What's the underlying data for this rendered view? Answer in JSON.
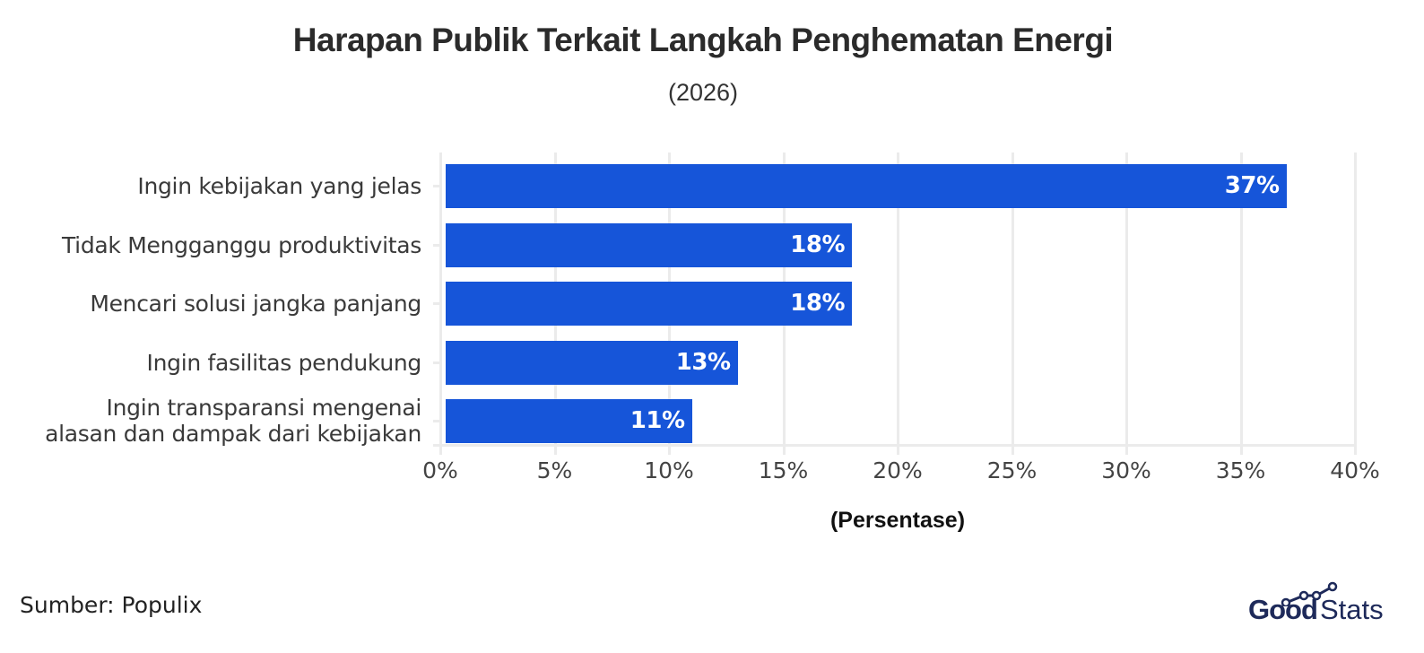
{
  "header": {
    "title": "Harapan Publik Terkait Langkah Penghematan Energi",
    "subtitle": "(2026)"
  },
  "footer": {
    "source": "Sumber: Populix",
    "logo_good": "Good",
    "logo_stats": "Stats"
  },
  "colors": {
    "bar": "#1655d9",
    "grid": "#ebebeb",
    "logo": "#1e2a5a"
  },
  "axis": {
    "x_ticks": [
      "0%",
      "5%",
      "10%",
      "15%",
      "20%",
      "25%",
      "30%",
      "35%",
      "40%"
    ],
    "x_label": "(Persentase)"
  },
  "bars": [
    {
      "label_lines": [
        "Ingin kebijakan yang jelas"
      ],
      "value": 37,
      "value_label": "37%"
    },
    {
      "label_lines": [
        "Tidak Mengganggu produktivitas"
      ],
      "value": 18,
      "value_label": "18%"
    },
    {
      "label_lines": [
        "Mencari solusi jangka panjang"
      ],
      "value": 18,
      "value_label": "18%"
    },
    {
      "label_lines": [
        "Ingin fasilitas pendukung"
      ],
      "value": 13,
      "value_label": "13%"
    },
    {
      "label_lines": [
        "Ingin transparansi mengenai",
        "alasan dan dampak dari kebijakan"
      ],
      "value": 11,
      "value_label": "11%"
    }
  ],
  "chart_data": {
    "type": "bar",
    "orientation": "horizontal",
    "title": "Harapan Publik Terkait Langkah Penghematan Energi",
    "subtitle": "(2026)",
    "categories": [
      "Ingin kebijakan yang jelas",
      "Tidak Mengganggu produktivitas",
      "Mencari solusi jangka panjang",
      "Ingin fasilitas pendukung",
      "Ingin transparansi mengenai alasan dan dampak dari kebijakan"
    ],
    "values": [
      37,
      18,
      18,
      13,
      11
    ],
    "value_labels": [
      "37%",
      "18%",
      "18%",
      "13%",
      "11%"
    ],
    "xlabel": "(Persentase)",
    "ylabel": "",
    "xlim": [
      0,
      40
    ],
    "x_ticks": [
      0,
      5,
      10,
      15,
      20,
      25,
      30,
      35,
      40
    ],
    "x_tick_labels": [
      "0%",
      "5%",
      "10%",
      "15%",
      "20%",
      "25%",
      "30%",
      "35%",
      "40%"
    ],
    "grid": true,
    "legend": null,
    "source": "Sumber: Populix"
  }
}
